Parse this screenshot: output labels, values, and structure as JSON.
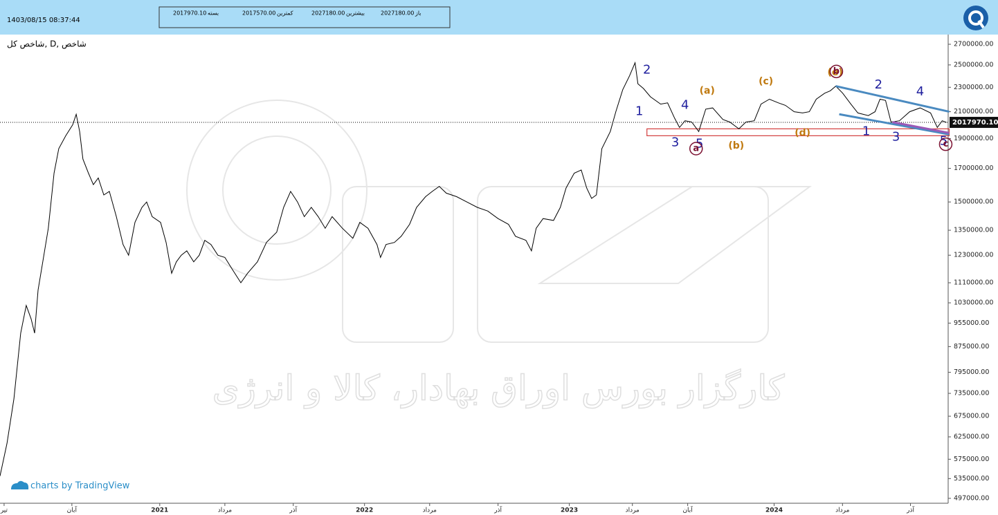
{
  "header": {
    "timestamp": "1403/08/15 08:37:44",
    "fields": [
      {
        "value": "2017970.10",
        "label": "بسته"
      },
      {
        "value": "2017570.00",
        "label": "کمترین"
      },
      {
        "value": "2027180.00",
        "label": "بیشترین"
      },
      {
        "value": "2027180.00",
        "label": "باز"
      }
    ]
  },
  "watermark": "کارگزار بورس اوراق بهادار، کالا و انرژی",
  "credit": "charts by TradingView",
  "chart_data": {
    "type": "line",
    "title": "شاخص کل, D, شاخص",
    "yscale": "log",
    "grid": false,
    "xlim": [
      2020.22,
      2024.85
    ],
    "ylim": [
      488000,
      2785000
    ],
    "xticks": [
      {
        "value": 2020.24,
        "label": "تیر"
      },
      {
        "value": 2020.571,
        "label": "آبان"
      },
      2021,
      {
        "value": 2021.318,
        "label": "مرداد"
      },
      {
        "value": 2021.652,
        "label": "آذر"
      },
      2022,
      {
        "value": 2022.318,
        "label": "مرداد"
      },
      {
        "value": 2022.652,
        "label": "آذر"
      },
      2023,
      {
        "value": 2023.308,
        "label": "مرداد"
      },
      {
        "value": 2023.578,
        "label": "آبان"
      },
      2024,
      {
        "value": 2024.334,
        "label": "مرداد"
      },
      {
        "value": 2024.666,
        "label": "آذر"
      }
    ],
    "yticks": [
      {
        "value": 2700000,
        "label": "2700000.00"
      },
      {
        "value": 2500000,
        "label": "2500000.00"
      },
      {
        "value": 2300000,
        "label": "2300000.00"
      },
      {
        "value": 2100000,
        "label": "2100000.00"
      },
      {
        "value": 1900000,
        "label": "1900000.00"
      },
      {
        "value": 1700000,
        "label": "1700000.00"
      },
      {
        "value": 1500000,
        "label": "1500000.00"
      },
      {
        "value": 1350000,
        "label": "1350000.00"
      },
      {
        "value": 1230000,
        "label": "1230000.00"
      },
      {
        "value": 1110000,
        "label": "1110000.00"
      },
      {
        "value": 1030000,
        "label": "1030000.00"
      },
      {
        "value": 955000,
        "label": "955000.00"
      },
      {
        "value": 875000,
        "label": "875000.00"
      },
      {
        "value": 795000,
        "label": "795000.00"
      },
      {
        "value": 735000,
        "label": "735000.00"
      },
      {
        "value": 675000,
        "label": "675000.00"
      },
      {
        "value": 625000,
        "label": "625000.00"
      },
      {
        "value": 575000,
        "label": "575000.00"
      },
      {
        "value": 535000,
        "label": "535000.00"
      },
      {
        "value": 497000,
        "label": "497000.00"
      }
    ],
    "last_price": {
      "value": 2017970.1,
      "label": "2017970.10"
    },
    "series": [
      {
        "color": "#000000",
        "x": [
          2020.22,
          2020.254,
          2020.288,
          2020.321,
          2020.348,
          2020.372,
          2020.389,
          2020.406,
          2020.429,
          2020.456,
          2020.484,
          2020.507,
          2020.541,
          2020.575,
          2020.592,
          2020.609,
          2020.625,
          2020.652,
          2020.676,
          2020.7,
          2020.727,
          2020.754,
          2020.788,
          2020.821,
          2020.848,
          2020.879,
          2020.913,
          2020.936,
          2020.963,
          2021.004,
          2021.031,
          2021.058,
          2021.081,
          2021.105,
          2021.132,
          2021.166,
          2021.193,
          2021.22,
          2021.25,
          2021.284,
          2021.318,
          2021.352,
          2021.396,
          2021.429,
          2021.477,
          2021.521,
          2021.571,
          2021.605,
          2021.639,
          2021.673,
          2021.706,
          2021.74,
          2021.774,
          2021.808,
          2021.842,
          2021.892,
          2021.943,
          2021.977,
          2022.017,
          2022.061,
          2022.078,
          2022.105,
          2022.146,
          2022.179,
          2022.22,
          2022.254,
          2022.298,
          2022.331,
          2022.365,
          2022.399,
          2022.45,
          2022.5,
          2022.551,
          2022.602,
          2022.652,
          2022.703,
          2022.737,
          2022.788,
          2022.815,
          2022.838,
          2022.872,
          2022.923,
          2022.956,
          2022.984,
          2023.024,
          2023.058,
          2023.085,
          2023.109,
          2023.132,
          2023.159,
          2023.2,
          2023.227,
          2023.261,
          2023.294,
          2023.321,
          2023.335,
          2023.362,
          2023.396,
          2023.446,
          2023.48,
          2023.514,
          2023.538,
          2023.565,
          2023.598,
          2023.632,
          2023.666,
          2023.7,
          2023.75,
          2023.784,
          2023.828,
          2023.862,
          2023.903,
          2023.936,
          2023.977,
          2024.021,
          2024.055,
          2024.098,
          2024.139,
          2024.172,
          2024.206,
          2024.247,
          2024.274,
          2024.301,
          2024.335,
          2024.375,
          2024.409,
          2024.46,
          2024.493,
          2024.517,
          2024.544,
          2024.571,
          2024.612,
          2024.662,
          2024.713,
          2024.764,
          2024.797,
          2024.821,
          2024.841
        ],
        "values": [
          540000,
          610000,
          720000,
          920000,
          1020000,
          970000,
          920000,
          1080000,
          1200000,
          1360000,
          1670000,
          1830000,
          1920000,
          2000000,
          2080000,
          1950000,
          1760000,
          1670000,
          1600000,
          1640000,
          1540000,
          1560000,
          1420000,
          1280000,
          1230000,
          1390000,
          1470000,
          1500000,
          1420000,
          1390000,
          1290000,
          1150000,
          1200000,
          1230000,
          1250000,
          1200000,
          1230000,
          1300000,
          1280000,
          1230000,
          1220000,
          1170000,
          1110000,
          1150000,
          1200000,
          1290000,
          1340000,
          1470000,
          1560000,
          1500000,
          1420000,
          1470000,
          1420000,
          1360000,
          1420000,
          1360000,
          1310000,
          1390000,
          1360000,
          1280000,
          1220000,
          1280000,
          1290000,
          1320000,
          1380000,
          1470000,
          1530000,
          1560000,
          1590000,
          1550000,
          1530000,
          1500000,
          1470000,
          1450000,
          1410000,
          1380000,
          1320000,
          1300000,
          1250000,
          1360000,
          1410000,
          1400000,
          1470000,
          1580000,
          1670000,
          1690000,
          1580000,
          1520000,
          1540000,
          1830000,
          1950000,
          2100000,
          2280000,
          2400000,
          2520000,
          2330000,
          2290000,
          2220000,
          2160000,
          2170000,
          2050000,
          1980000,
          2030000,
          2020000,
          1950000,
          2120000,
          2130000,
          2040000,
          2020000,
          1970000,
          2020000,
          2030000,
          2160000,
          2200000,
          2170000,
          2150000,
          2100000,
          2090000,
          2100000,
          2200000,
          2250000,
          2270000,
          2310000,
          2250000,
          2160000,
          2090000,
          2070000,
          2100000,
          2200000,
          2190000,
          2020000,
          2030000,
          2100000,
          2130000,
          2090000,
          1980000,
          2030000,
          2017970.1
        ]
      }
    ],
    "support_zone": {
      "x": [
        2023.379,
        2024.855
      ],
      "ymin": 1920000,
      "ymax": 1970000,
      "color": "#d23c3c"
    },
    "trendlines": [
      {
        "x": [
          2024.301,
          2024.855
        ],
        "y": [
          2310000,
          2100000
        ],
        "color": "#4a8ac0"
      },
      {
        "x": [
          2024.318,
          2024.855
        ],
        "y": [
          2080000,
          1930000
        ],
        "color": "#4a8ac0"
      },
      {
        "x": [
          2024.578,
          2024.855
        ],
        "y": [
          2020000,
          1940000
        ],
        "color": "#9b59b6"
      }
    ],
    "annotations": [
      {
        "text": "2",
        "x": 2023.379,
        "y": 2450000,
        "color": "#1f1f9e"
      },
      {
        "text": "1",
        "x": 2023.342,
        "y": 2100000,
        "color": "#1f1f9e"
      },
      {
        "text": "4",
        "x": 2023.565,
        "y": 2150000,
        "color": "#1f1f9e"
      },
      {
        "text": "3",
        "x": 2023.517,
        "y": 1870000,
        "color": "#1f1f9e"
      },
      {
        "text": "5",
        "x": 2023.636,
        "y": 1860000,
        "color": "#1f1f9e"
      },
      {
        "text": "2",
        "x": 2024.51,
        "y": 2320000,
        "color": "#1f1f9e"
      },
      {
        "text": "4",
        "x": 2024.713,
        "y": 2260000,
        "color": "#1f1f9e"
      },
      {
        "text": "1",
        "x": 2024.45,
        "y": 1950000,
        "color": "#1f1f9e"
      },
      {
        "text": "3",
        "x": 2024.595,
        "y": 1910000,
        "color": "#1f1f9e"
      },
      {
        "text": "5",
        "x": 2024.828,
        "y": 1880000,
        "color": "#1f1f9e"
      },
      {
        "text": "(a)",
        "x": 2023.673,
        "y": 2270000,
        "color": "#c07a10"
      },
      {
        "text": "(c)",
        "x": 2023.96,
        "y": 2350000,
        "color": "#c07a10"
      },
      {
        "text": "(b)",
        "x": 2023.815,
        "y": 1850000,
        "color": "#c07a10"
      },
      {
        "text": "(d)",
        "x": 2024.139,
        "y": 1940000,
        "color": "#c07a10"
      },
      {
        "text": "(e)",
        "x": 2024.298,
        "y": 2430000,
        "color": "#c07a10"
      },
      {
        "text": "a",
        "x": 2023.619,
        "y": 1830000,
        "color": "#7a1030",
        "circled": true
      },
      {
        "text": "b",
        "x": 2024.304,
        "y": 2440000,
        "color": "#7a1030",
        "circled": true
      },
      {
        "text": "c",
        "x": 2024.838,
        "y": 1860000,
        "color": "#7a1030",
        "circled": true
      }
    ]
  }
}
